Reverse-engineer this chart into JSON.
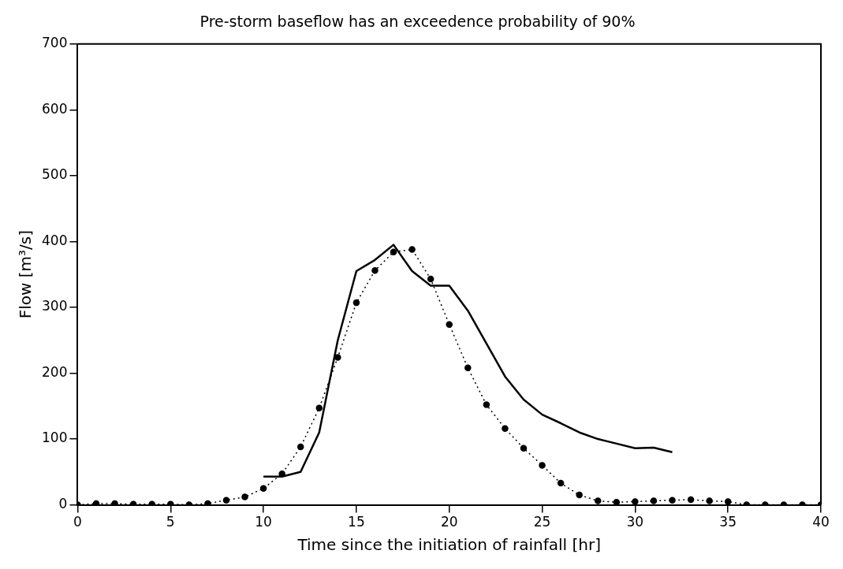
{
  "chart_data": {
    "type": "line",
    "title": "Pre-storm baseflow has an exceedence probability of 90%",
    "xlabel": "Time since the initiation of rainfall [hr]",
    "ylabel": "Flow [m³/s]",
    "xlim": [
      0,
      40
    ],
    "xticks": [
      0,
      5,
      10,
      15,
      20,
      25,
      30,
      35,
      40
    ],
    "ylim": [
      0,
      700
    ],
    "yticks": [
      0,
      100,
      200,
      300,
      400,
      500,
      600,
      700
    ],
    "grid": false,
    "legend": false,
    "series": [
      {
        "color": "#000000",
        "line_style": "solid",
        "marker": "none",
        "x": [
          10,
          11,
          12,
          13,
          14,
          15,
          16,
          17,
          18,
          19,
          20,
          21,
          22,
          23,
          24,
          25,
          26,
          27,
          28,
          29,
          30,
          31,
          32
        ],
        "values": [
          43,
          43,
          50,
          110,
          250,
          355,
          372,
          395,
          355,
          333,
          333,
          295,
          245,
          195,
          160,
          137,
          124,
          110,
          100,
          93,
          86,
          87,
          80
        ]
      },
      {
        "color": "#000000",
        "line_style": "dotted",
        "marker": "circle",
        "x": [
          0,
          1,
          2,
          3,
          4,
          5,
          6,
          7,
          8,
          9,
          10,
          11,
          12,
          13,
          14,
          15,
          16,
          17,
          18,
          19,
          20,
          21,
          22,
          23,
          24,
          25,
          26,
          27,
          28,
          29,
          30,
          31,
          32,
          33,
          34,
          35,
          36,
          37,
          38,
          39,
          40
        ],
        "values": [
          0,
          2,
          2,
          1,
          1,
          1,
          0,
          2,
          7,
          12,
          25,
          47,
          88,
          147,
          224,
          307,
          356,
          384,
          388,
          343,
          274,
          208,
          152,
          116,
          86,
          60,
          33,
          15,
          6,
          4,
          5,
          6,
          7,
          8,
          6,
          5,
          0,
          0,
          0,
          0,
          0
        ]
      }
    ]
  }
}
